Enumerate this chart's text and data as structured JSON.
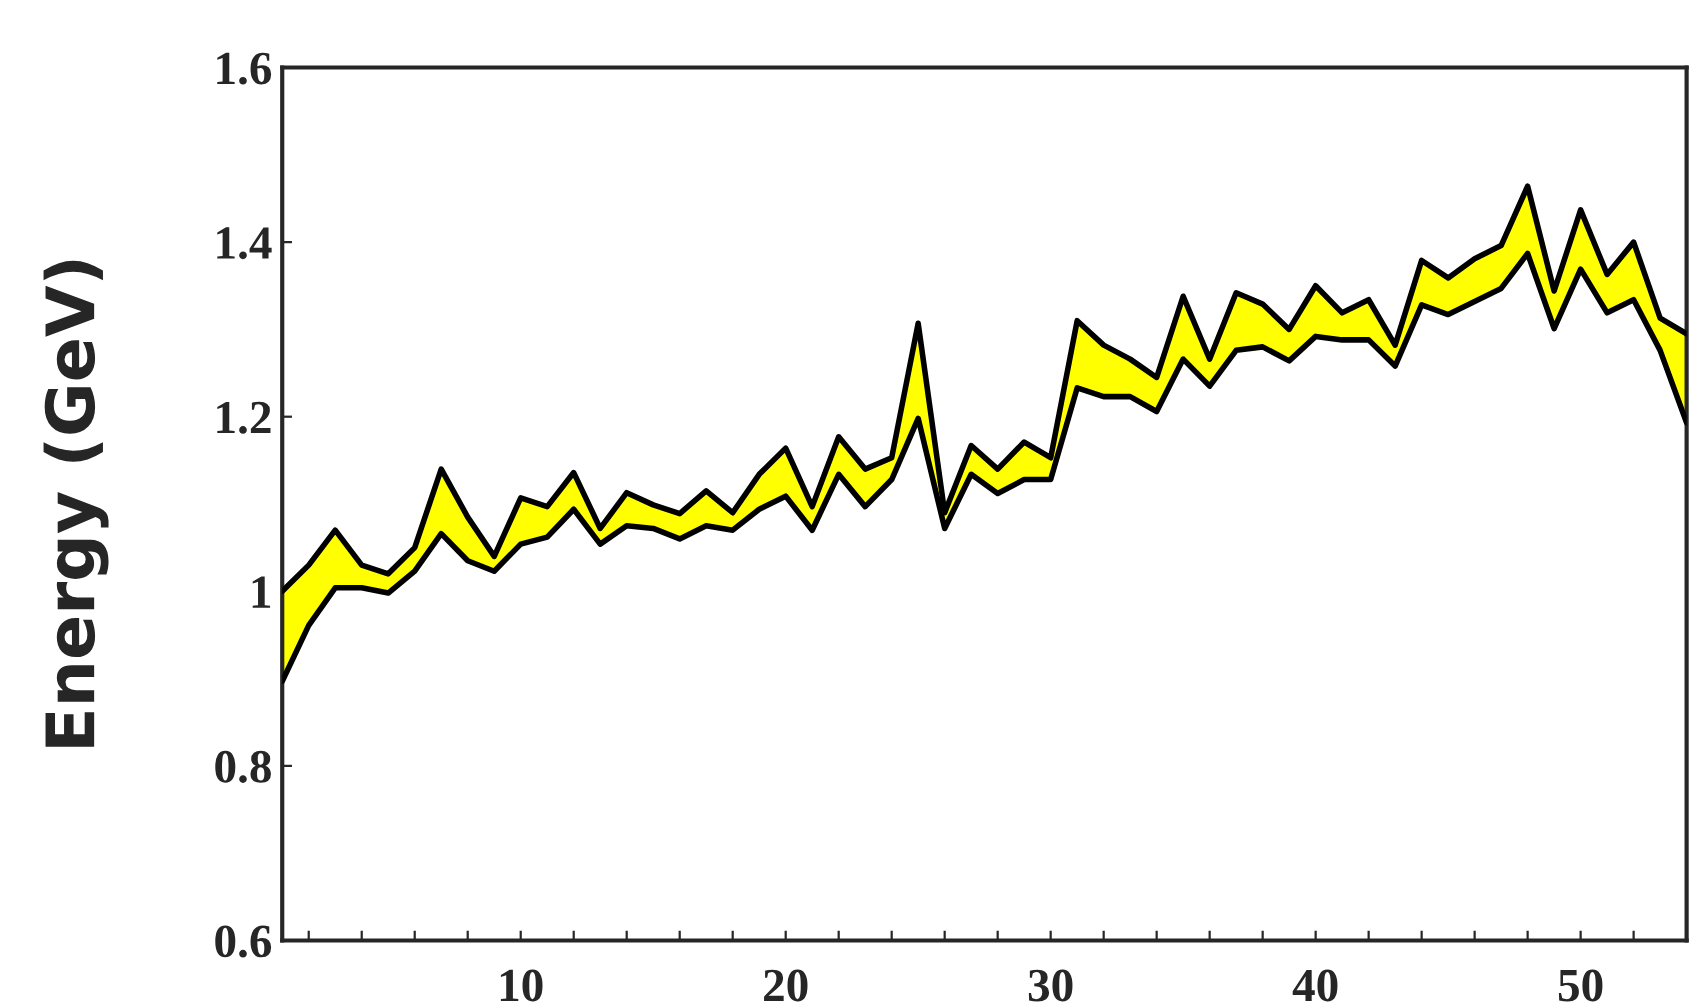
{
  "chart_data": {
    "type": "line",
    "ylabel": "Energy (GeV)",
    "x": [
      1,
      2,
      3,
      4,
      5,
      6,
      7,
      8,
      9,
      10,
      11,
      12,
      13,
      14,
      15,
      16,
      17,
      18,
      19,
      20,
      21,
      22,
      23,
      24,
      25,
      26,
      27,
      28,
      29,
      30,
      31,
      32,
      33,
      34,
      35,
      36,
      37,
      38,
      39,
      40,
      41,
      42,
      43,
      44,
      45,
      46,
      47,
      48,
      49,
      50,
      51,
      52,
      53,
      54
    ],
    "series": [
      {
        "color": "#000000",
        "values": [
          1.0,
          1.03,
          1.07,
          1.03,
          1.02,
          1.05,
          1.14,
          1.085,
          1.04,
          1.107,
          1.097,
          1.136,
          1.072,
          1.113,
          1.099,
          1.089,
          1.115,
          1.09,
          1.134,
          1.164,
          1.097,
          1.177,
          1.14,
          1.153,
          1.307,
          1.09,
          1.167,
          1.14,
          1.171,
          1.153,
          1.31,
          1.282,
          1.266,
          1.245,
          1.338,
          1.266,
          1.342,
          1.329,
          1.3,
          1.35,
          1.319,
          1.334,
          1.282,
          1.379,
          1.359,
          1.381,
          1.396,
          1.464,
          1.344,
          1.437,
          1.363,
          1.4,
          1.313,
          1.295
        ]
      },
      {
        "color": "#000000",
        "values": [
          0.897,
          0.961,
          1.004,
          1.004,
          0.998,
          1.023,
          1.066,
          1.035,
          1.023,
          1.054,
          1.062,
          1.094,
          1.054,
          1.075,
          1.072,
          1.06,
          1.075,
          1.07,
          1.094,
          1.109,
          1.07,
          1.134,
          1.097,
          1.128,
          1.198,
          1.072,
          1.134,
          1.112,
          1.128,
          1.128,
          1.233,
          1.223,
          1.223,
          1.206,
          1.266,
          1.235,
          1.276,
          1.28,
          1.264,
          1.292,
          1.288,
          1.288,
          1.258,
          1.328,
          1.317,
          1.332,
          1.347,
          1.387,
          1.301,
          1.369,
          1.319,
          1.334,
          1.276,
          1.193
        ],
        "lower": [
          0.897,
          0.961,
          1.004,
          1.004,
          0.998,
          1.023,
          1.066,
          1.035,
          1.023,
          1.054,
          1.062,
          1.094,
          1.054,
          1.075,
          1.072,
          1.06,
          1.075,
          1.07,
          1.094,
          1.109,
          1.07,
          1.134,
          1.097,
          1.128,
          1.198,
          1.072,
          1.134,
          1.112,
          1.128,
          1.128,
          1.233,
          1.223,
          1.223,
          1.206,
          1.266,
          1.235,
          1.276,
          1.28,
          1.264,
          1.292,
          1.288,
          1.288,
          1.258,
          1.328,
          1.317,
          1.332,
          1.347,
          1.387,
          1.301,
          1.369,
          1.319,
          1.334,
          1.276,
          1.193
        ],
        "upper": [
          1.0,
          1.03,
          1.07,
          1.03,
          1.02,
          1.05,
          1.14,
          1.085,
          1.04,
          1.107,
          1.097,
          1.136,
          1.072,
          1.113,
          1.099,
          1.089,
          1.115,
          1.09,
          1.134,
          1.164,
          1.097,
          1.177,
          1.14,
          1.153,
          1.307,
          1.09,
          1.167,
          1.14,
          1.171,
          1.153,
          1.31,
          1.282,
          1.266,
          1.245,
          1.338,
          1.266,
          1.342,
          1.329,
          1.3,
          1.35,
          1.319,
          1.334,
          1.282,
          1.379,
          1.359,
          1.381,
          1.396,
          1.464,
          1.344,
          1.437,
          1.363,
          1.4,
          1.313,
          1.295
        ]
      }
    ],
    "xlim": [
      1,
      54
    ],
    "xticks": [
      {
        "value": 2,
        "label": null
      },
      {
        "value": 4,
        "label": null
      },
      {
        "value": 6,
        "label": null
      },
      {
        "value": 8,
        "label": null
      },
      10,
      {
        "value": 12,
        "label": null
      },
      {
        "value": 14,
        "label": null
      },
      {
        "value": 16,
        "label": null
      },
      {
        "value": 18,
        "label": null
      },
      20,
      {
        "value": 22,
        "label": null
      },
      {
        "value": 24,
        "label": null
      },
      {
        "value": 26,
        "label": null
      },
      {
        "value": 28,
        "label": null
      },
      30,
      {
        "value": 32,
        "label": null
      },
      {
        "value": 34,
        "label": null
      },
      {
        "value": 36,
        "label": null
      },
      {
        "value": 38,
        "label": null
      },
      40,
      {
        "value": 42,
        "label": null
      },
      {
        "value": 44,
        "label": null
      },
      {
        "value": 46,
        "label": null
      },
      {
        "value": 48,
        "label": null
      },
      50,
      {
        "value": 52,
        "label": null
      }
    ],
    "ylim": [
      0.6,
      1.6
    ],
    "yticks": [
      0.6,
      0.8,
      1,
      1.2,
      1.4,
      1.6
    ],
    "grid": false,
    "legend": false
  }
}
